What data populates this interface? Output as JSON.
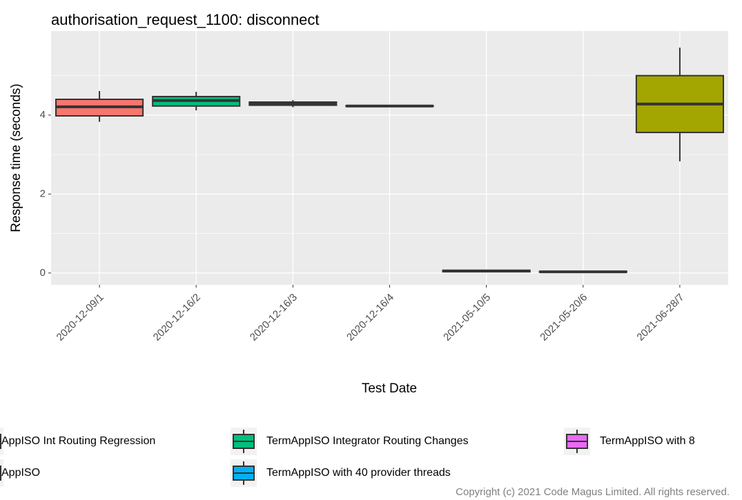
{
  "chart_data": {
    "type": "box",
    "title": "authorisation_request_1100: disconnect",
    "x_label": "Test Date",
    "y_label": "Response time (seconds)",
    "categories": [
      "2020-12-09/1",
      "2020-12-16/2",
      "2020-12-16/3",
      "2020-12-16/4",
      "2021-05-10/5",
      "2021-05-20/6",
      "2021-06-28/7"
    ],
    "ylim": [
      -0.3,
      6.13
    ],
    "yticks": [
      0,
      2,
      4
    ],
    "grid": true,
    "series": [
      {
        "name": "AppISO Int Routing Regression",
        "color": "#F8766D",
        "values": [
          {
            "low": 3.83,
            "q1": 3.98,
            "median": 4.21,
            "q3": 4.4,
            "high": 4.61
          },
          null,
          null,
          null,
          null,
          null,
          null
        ]
      },
      {
        "name": "AppISO",
        "color": "#A3A500",
        "values": [
          null,
          null,
          null,
          null,
          null,
          null,
          {
            "low": 2.83,
            "q1": 3.56,
            "median": 4.28,
            "q3": 5.0,
            "high": 5.71
          }
        ]
      },
      {
        "name": "TermAppISO Integrator Routing Changes",
        "color": "#00BF7D",
        "values": [
          null,
          {
            "low": 4.12,
            "q1": 4.23,
            "median": 4.37,
            "q3": 4.47,
            "high": 4.59
          },
          null,
          null,
          null,
          null,
          null
        ]
      },
      {
        "name": "TermAppISO with 40 provider threads",
        "color": "#00B0F6",
        "values": [
          null,
          null,
          {
            "low": 4.2,
            "q1": 4.25,
            "median": 4.3,
            "q3": 4.33,
            "high": 4.38
          },
          {
            "low": 4.21,
            "q1": 4.22,
            "median": 4.23,
            "q3": 4.24,
            "high": 4.25
          },
          null,
          null,
          null
        ]
      },
      {
        "name": "TermAppISO with 8",
        "color": "#E76BF3",
        "values": [
          null,
          null,
          null,
          null,
          {
            "low": 0.02,
            "q1": 0.03,
            "median": 0.05,
            "q3": 0.07,
            "high": 0.08
          },
          {
            "low": 0.02,
            "q1": 0.02,
            "median": 0.03,
            "q3": 0.04,
            "high": 0.05
          },
          null
        ]
      }
    ]
  },
  "copyright": "Copyright (c) 2021 Code Magus Limited. All rights reserved."
}
